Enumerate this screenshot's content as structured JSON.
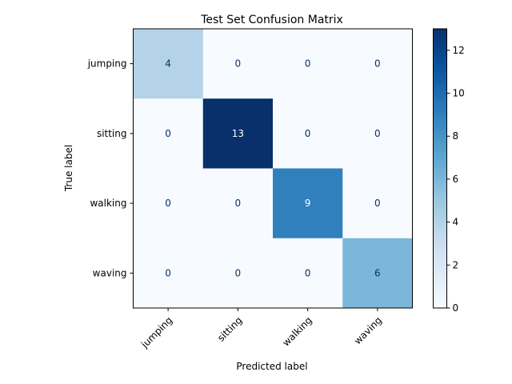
{
  "chart_data": {
    "type": "heatmap",
    "title": "Test Set Confusion Matrix",
    "xlabel": "Predicted label",
    "ylabel": "True label",
    "x_categories": [
      "jumping",
      "sitting",
      "walking",
      "waving"
    ],
    "y_categories": [
      "jumping",
      "sitting",
      "walking",
      "waving"
    ],
    "values": [
      [
        4,
        0,
        0,
        0
      ],
      [
        0,
        13,
        0,
        0
      ],
      [
        0,
        0,
        9,
        0
      ],
      [
        0,
        0,
        0,
        6
      ]
    ],
    "colorscale": "Blues",
    "color_range": [
      0,
      13
    ],
    "colorbar_ticks": [
      "0",
      "2",
      "4",
      "6",
      "8",
      "10",
      "12"
    ],
    "cell_text_colors": {
      "light": "#08306b",
      "dark": "#ffffff"
    },
    "grid": false
  }
}
